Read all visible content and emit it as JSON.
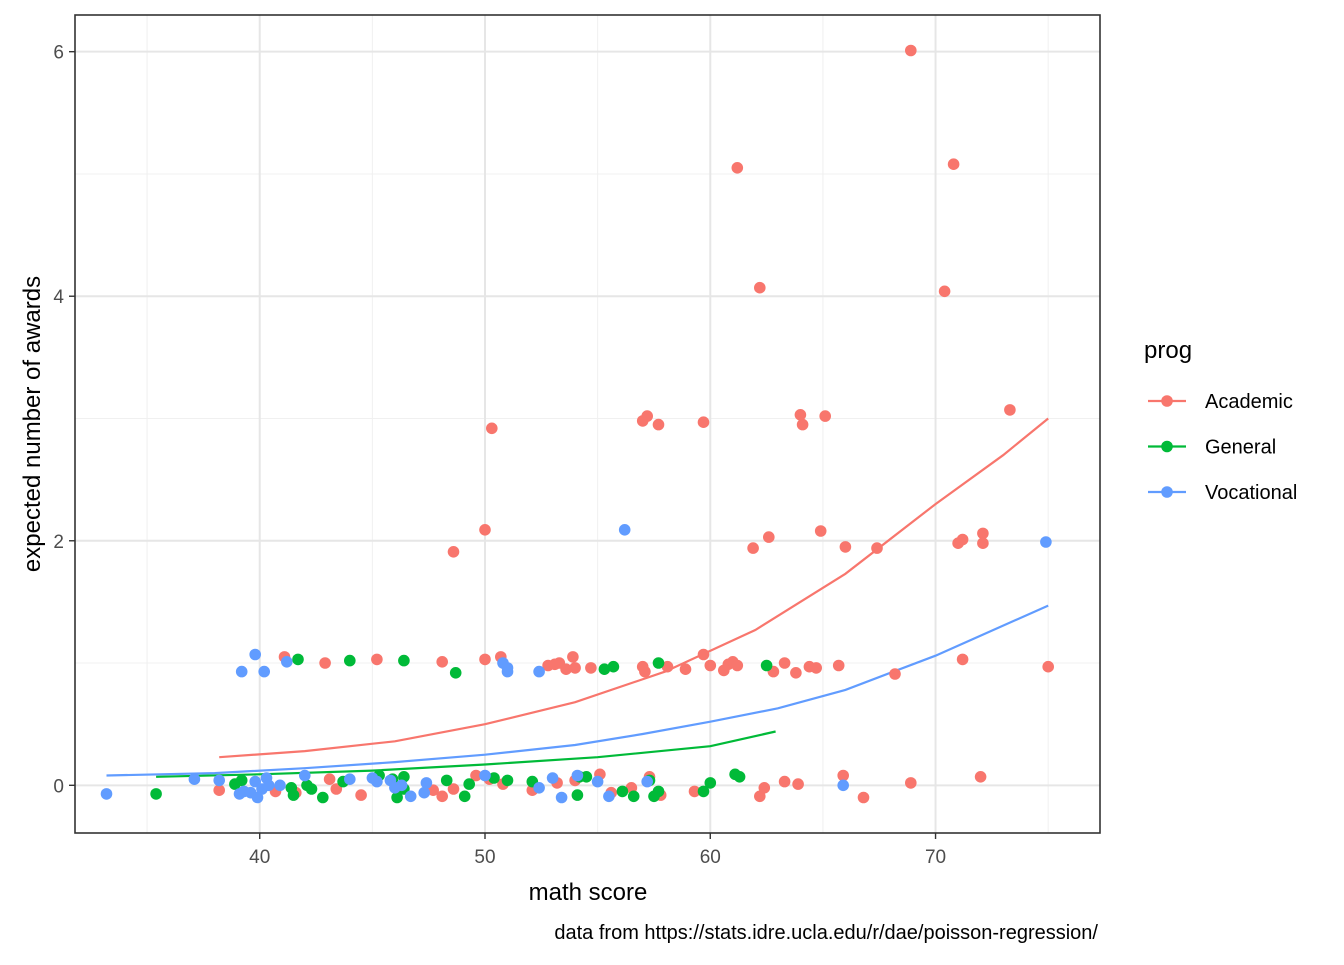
{
  "chart_data": {
    "type": "scatter",
    "xlabel": "math score",
    "ylabel": "expected number of awards",
    "caption": "data from https://stats.idre.ucla.edu/r/dae/poisson-regression/",
    "xlim": [
      31.8,
      77.3
    ],
    "ylim": [
      -0.39,
      6.3
    ],
    "x_ticks": [
      40,
      50,
      60,
      70
    ],
    "y_ticks": [
      0,
      2,
      4,
      6
    ],
    "x_minor_ticks": [
      35,
      45,
      55,
      65,
      75
    ],
    "y_minor_ticks": [
      1,
      3,
      5
    ],
    "grid": true,
    "legend": {
      "title": "prog",
      "position": "right",
      "entries": [
        "Academic",
        "General",
        "Vocational"
      ]
    },
    "colors": {
      "Academic": "#F8766D",
      "General": "#00BA38",
      "Vocational": "#619CFF"
    },
    "series": [
      {
        "name": "Academic",
        "color": "#F8766D",
        "points": [
          [
            41.1,
            1.05
          ],
          [
            42.9,
            1.0
          ],
          [
            45.2,
            1.03
          ],
          [
            48.1,
            1.01
          ],
          [
            48.6,
            1.91
          ],
          [
            50.0,
            2.09
          ],
          [
            50.0,
            1.03
          ],
          [
            50.3,
            2.92
          ],
          [
            50.7,
            1.05
          ],
          [
            52.8,
            0.98
          ],
          [
            53.1,
            0.99
          ],
          [
            53.3,
            1.0
          ],
          [
            53.6,
            0.95
          ],
          [
            53.9,
            1.05
          ],
          [
            54.0,
            0.96
          ],
          [
            54.7,
            0.96
          ],
          [
            57.0,
            2.98
          ],
          [
            57.2,
            3.02
          ],
          [
            57.7,
            2.95
          ],
          [
            57.0,
            0.97
          ],
          [
            57.1,
            0.93
          ],
          [
            58.1,
            0.97
          ],
          [
            58.9,
            0.95
          ],
          [
            59.7,
            2.97
          ],
          [
            59.7,
            1.07
          ],
          [
            60.0,
            0.98
          ],
          [
            60.6,
            0.94
          ],
          [
            60.8,
            0.99
          ],
          [
            61.0,
            1.01
          ],
          [
            61.2,
            0.98
          ],
          [
            61.2,
            5.05
          ],
          [
            61.9,
            1.94
          ],
          [
            62.2,
            4.07
          ],
          [
            62.6,
            2.03
          ],
          [
            62.8,
            0.93
          ],
          [
            63.3,
            1.0
          ],
          [
            63.8,
            0.92
          ],
          [
            64.0,
            3.03
          ],
          [
            64.1,
            2.95
          ],
          [
            64.4,
            0.97
          ],
          [
            64.7,
            0.96
          ],
          [
            64.9,
            2.08
          ],
          [
            65.1,
            3.02
          ],
          [
            65.7,
            0.98
          ],
          [
            66.0,
            1.95
          ],
          [
            67.4,
            1.94
          ],
          [
            68.2,
            0.91
          ],
          [
            68.9,
            6.01
          ],
          [
            70.4,
            4.04
          ],
          [
            70.8,
            5.08
          ],
          [
            71.0,
            1.98
          ],
          [
            71.2,
            2.01
          ],
          [
            71.2,
            1.03
          ],
          [
            72.1,
            2.06
          ],
          [
            72.1,
            1.98
          ],
          [
            73.3,
            3.07
          ],
          [
            75.0,
            0.97
          ],
          [
            38.2,
            -0.04
          ],
          [
            40.7,
            -0.05
          ],
          [
            41.6,
            -0.06
          ],
          [
            43.1,
            0.05
          ],
          [
            43.4,
            -0.03
          ],
          [
            44.5,
            -0.08
          ],
          [
            47.7,
            -0.04
          ],
          [
            48.1,
            -0.09
          ],
          [
            48.6,
            -0.03
          ],
          [
            49.6,
            0.08
          ],
          [
            50.2,
            0.05
          ],
          [
            50.8,
            0.01
          ],
          [
            52.1,
            -0.04
          ],
          [
            53.2,
            0.02
          ],
          [
            54.0,
            0.04
          ],
          [
            55.1,
            0.09
          ],
          [
            55.6,
            -0.06
          ],
          [
            56.5,
            -0.02
          ],
          [
            57.3,
            0.07
          ],
          [
            57.8,
            -0.08
          ],
          [
            59.3,
            -0.05
          ],
          [
            62.2,
            -0.09
          ],
          [
            62.4,
            -0.02
          ],
          [
            63.3,
            0.03
          ],
          [
            63.9,
            0.01
          ],
          [
            65.9,
            0.08
          ],
          [
            66.8,
            -0.1
          ],
          [
            68.9,
            0.02
          ],
          [
            72.0,
            0.07
          ]
        ],
        "fit": [
          [
            38.2,
            0.23
          ],
          [
            42,
            0.28
          ],
          [
            46,
            0.36
          ],
          [
            50,
            0.5
          ],
          [
            54,
            0.68
          ],
          [
            58,
            0.93
          ],
          [
            62,
            1.27
          ],
          [
            66,
            1.73
          ],
          [
            70,
            2.3
          ],
          [
            73,
            2.7
          ],
          [
            75,
            3.0
          ]
        ]
      },
      {
        "name": "General",
        "color": "#00BA38",
        "points": [
          [
            41.7,
            1.03
          ],
          [
            44.0,
            1.02
          ],
          [
            46.4,
            1.02
          ],
          [
            48.7,
            0.92
          ],
          [
            55.3,
            0.95
          ],
          [
            55.7,
            0.97
          ],
          [
            57.7,
            1.0
          ],
          [
            62.5,
            0.98
          ],
          [
            35.4,
            -0.07
          ],
          [
            38.9,
            0.01
          ],
          [
            39.2,
            0.04
          ],
          [
            41.4,
            -0.02
          ],
          [
            41.5,
            -0.08
          ],
          [
            42.1,
            0.0
          ],
          [
            42.3,
            -0.03
          ],
          [
            42.8,
            -0.1
          ],
          [
            43.7,
            0.03
          ],
          [
            45.3,
            0.08
          ],
          [
            45.9,
            0.05
          ],
          [
            46.1,
            -0.1
          ],
          [
            46.4,
            0.07
          ],
          [
            46.4,
            -0.03
          ],
          [
            48.3,
            0.04
          ],
          [
            49.1,
            -0.09
          ],
          [
            49.3,
            0.01
          ],
          [
            50.4,
            0.06
          ],
          [
            51.0,
            0.04
          ],
          [
            52.1,
            0.03
          ],
          [
            54.1,
            -0.08
          ],
          [
            54.2,
            0.07
          ],
          [
            54.5,
            0.07
          ],
          [
            56.1,
            -0.05
          ],
          [
            56.6,
            -0.09
          ],
          [
            57.3,
            0.04
          ],
          [
            57.5,
            -0.09
          ],
          [
            57.7,
            -0.05
          ],
          [
            59.7,
            -0.05
          ],
          [
            60.0,
            0.02
          ],
          [
            61.1,
            0.09
          ],
          [
            61.3,
            0.07
          ]
        ],
        "fit": [
          [
            35.4,
            0.07
          ],
          [
            40,
            0.09
          ],
          [
            45,
            0.12
          ],
          [
            50,
            0.17
          ],
          [
            55,
            0.23
          ],
          [
            60,
            0.32
          ],
          [
            62.9,
            0.44
          ]
        ]
      },
      {
        "name": "Vocational",
        "color": "#619CFF",
        "points": [
          [
            39.2,
            0.93
          ],
          [
            39.8,
            1.07
          ],
          [
            40.2,
            0.93
          ],
          [
            41.2,
            1.01
          ],
          [
            50.8,
            1.0
          ],
          [
            51.0,
            0.93
          ],
          [
            51.0,
            0.96
          ],
          [
            52.4,
            0.93
          ],
          [
            56.2,
            2.09
          ],
          [
            74.9,
            1.99
          ],
          [
            33.2,
            -0.07
          ],
          [
            37.1,
            0.05
          ],
          [
            38.2,
            0.04
          ],
          [
            39.1,
            -0.07
          ],
          [
            39.3,
            -0.05
          ],
          [
            39.6,
            -0.06
          ],
          [
            39.8,
            0.03
          ],
          [
            39.9,
            -0.1
          ],
          [
            40.1,
            -0.03
          ],
          [
            40.3,
            0.06
          ],
          [
            40.4,
            0.0
          ],
          [
            40.9,
            0.0
          ],
          [
            42.0,
            0.08
          ],
          [
            44.0,
            0.05
          ],
          [
            45.0,
            0.06
          ],
          [
            45.2,
            0.03
          ],
          [
            45.8,
            0.04
          ],
          [
            46.0,
            -0.02
          ],
          [
            46.3,
            0.0
          ],
          [
            46.7,
            -0.09
          ],
          [
            47.3,
            -0.06
          ],
          [
            47.4,
            0.02
          ],
          [
            50.0,
            0.08
          ],
          [
            52.4,
            -0.02
          ],
          [
            53.0,
            0.06
          ],
          [
            53.4,
            -0.1
          ],
          [
            54.1,
            0.08
          ],
          [
            55.0,
            0.03
          ],
          [
            55.5,
            -0.09
          ],
          [
            57.2,
            0.03
          ],
          [
            65.9,
            0.0
          ]
        ],
        "fit": [
          [
            33.2,
            0.08
          ],
          [
            38,
            0.1
          ],
          [
            42,
            0.14
          ],
          [
            46,
            0.19
          ],
          [
            50,
            0.25
          ],
          [
            54,
            0.33
          ],
          [
            57,
            0.42
          ],
          [
            60,
            0.52
          ],
          [
            63,
            0.63
          ],
          [
            66,
            0.78
          ],
          [
            70,
            1.06
          ],
          [
            75,
            1.47
          ]
        ]
      }
    ]
  }
}
